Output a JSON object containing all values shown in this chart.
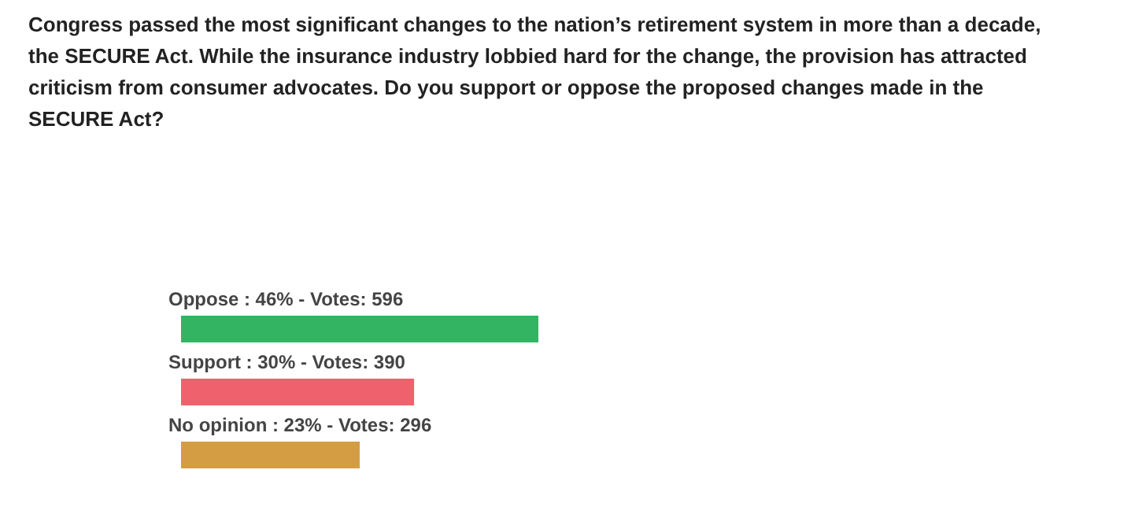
{
  "chart_data": {
    "type": "bar",
    "orientation": "horizontal",
    "title": "Congress passed the most significant changes to the nation’s retirement system in more than a decade,\nthe SECURE Act. While the insurance industry lobbied hard for the change, the provision has attracted\ncriticism from consumer advocates. Do you support or oppose the proposed changes made in the\nSECURE Act?",
    "categories": [
      "Oppose",
      "Support",
      "No opinion"
    ],
    "values": [
      46,
      30,
      23
    ],
    "colors": [
      "#33b463",
      "#f0616e",
      "#d59d43"
    ],
    "value_labels": [
      ": 46% - Votes: 596",
      ": 30% - Votes: 390",
      ": 23% - Votes: 296"
    ]
  }
}
